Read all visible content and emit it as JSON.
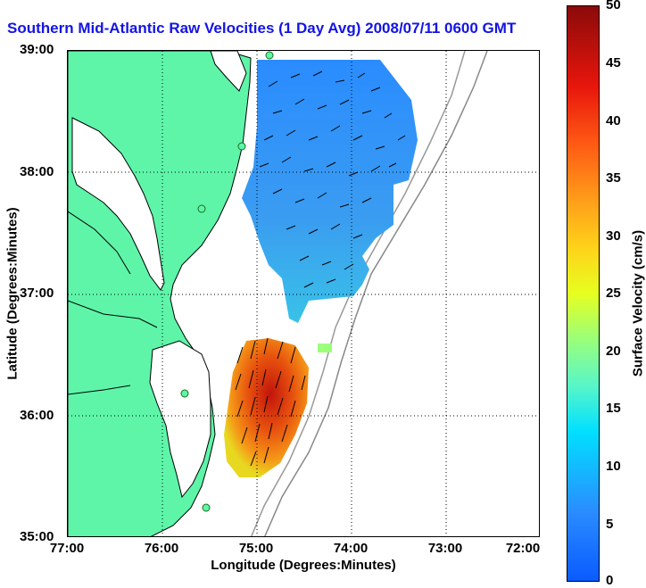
{
  "title": "Southern Mid-Atlantic Raw Velocities (1 Day Avg) 2008/07/11 0600 GMT",
  "xlabel": "Longitude (Degrees:Minutes)",
  "ylabel": "Latitude (Degrees:Minutes)",
  "x_ticks": [
    "77:00",
    "76:00",
    "75:00",
    "74:00",
    "73:00",
    "72:00"
  ],
  "y_ticks": [
    "39:00",
    "38:00",
    "37:00",
    "36:00",
    "35:00"
  ],
  "colorbar": {
    "label": "Surface Velocity (cm/s)",
    "ticks": [
      "50",
      "45",
      "40",
      "35",
      "30",
      "25",
      "20",
      "15",
      "10",
      "5",
      "0"
    ]
  },
  "colors": {
    "land": "#5ef5a9",
    "title": "#1414e6",
    "low_velocity": "#2a8cff",
    "high_velocity": "#d81a0c"
  }
}
